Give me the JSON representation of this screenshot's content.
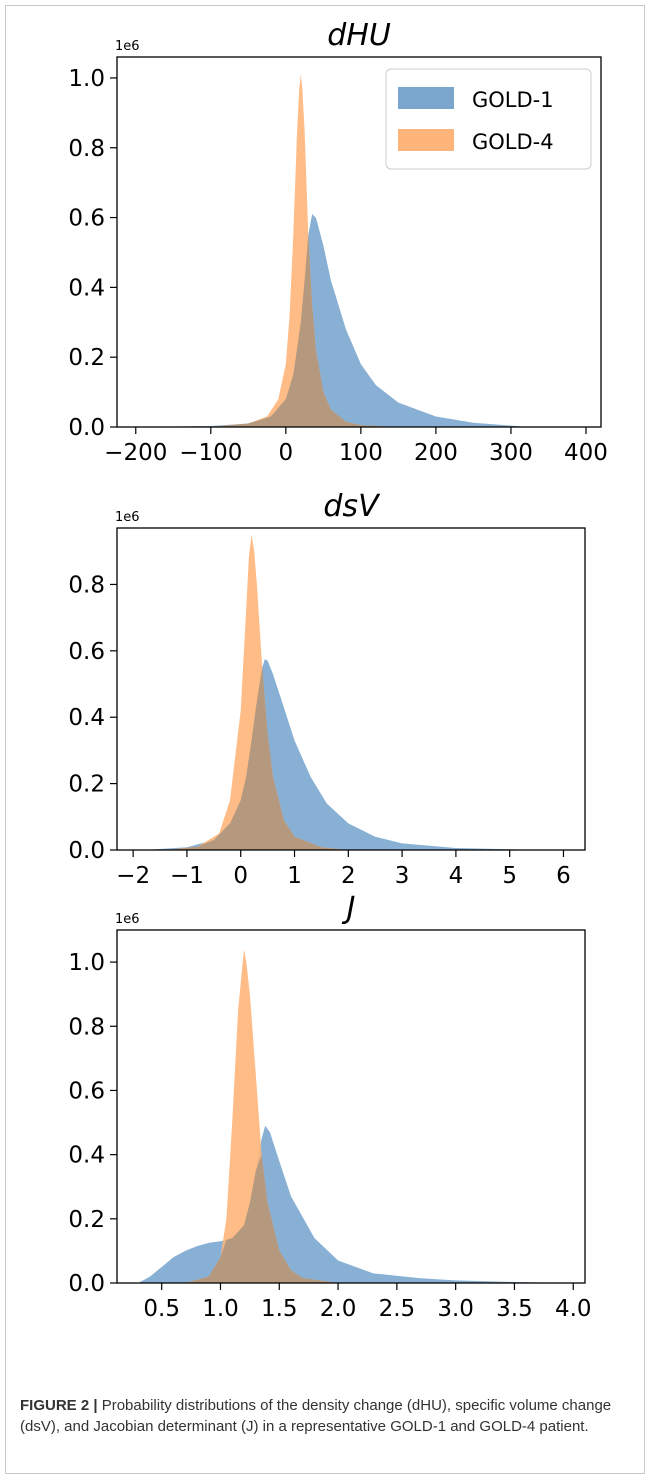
{
  "caption": {
    "label": "FIGURE 2 |",
    "text": "Probability distributions of the density change (dHU), specific volume change (dsV), and Jacobian determinant (J) in a representative GOLD-1 and GOLD-4 patient."
  },
  "colors": {
    "gold1": "#7ba7cf",
    "gold4": "#ffb57a",
    "overlap": "#b5997e"
  },
  "chart_data": [
    {
      "type": "area",
      "title": "dHU",
      "offset_label": "1e6",
      "xlim": [
        -225,
        420
      ],
      "ylim": [
        0,
        1.06
      ],
      "xticks": [
        -200,
        -100,
        0,
        100,
        200,
        300,
        400
      ],
      "xtick_labels": [
        "−200",
        "−100",
        "0",
        "100",
        "200",
        "300",
        "400"
      ],
      "yticks": [
        0.0,
        0.2,
        0.4,
        0.6,
        0.8,
        1.0
      ],
      "ytick_labels": [
        "0.0",
        "0.2",
        "0.4",
        "0.6",
        "0.8",
        "1.0"
      ],
      "legend": {
        "placement": "top-right",
        "entries": [
          "GOLD-1",
          "GOLD-4"
        ]
      },
      "series": [
        {
          "name": "GOLD-1",
          "x": [
            -210,
            -100,
            -50,
            -20,
            0,
            10,
            20,
            25,
            30,
            35,
            40,
            50,
            60,
            80,
            100,
            120,
            150,
            200,
            250,
            300,
            325
          ],
          "y": [
            0.0,
            0.003,
            0.01,
            0.03,
            0.08,
            0.15,
            0.3,
            0.42,
            0.55,
            0.61,
            0.6,
            0.52,
            0.42,
            0.28,
            0.18,
            0.12,
            0.07,
            0.03,
            0.012,
            0.004,
            0.0
          ]
        },
        {
          "name": "GOLD-4",
          "x": [
            -100,
            -50,
            -25,
            -10,
            0,
            5,
            10,
            15,
            18,
            20,
            22,
            25,
            30,
            35,
            40,
            50,
            60,
            80,
            100,
            150
          ],
          "y": [
            0.0,
            0.01,
            0.03,
            0.08,
            0.18,
            0.32,
            0.55,
            0.85,
            0.97,
            1.01,
            0.97,
            0.85,
            0.55,
            0.35,
            0.22,
            0.1,
            0.05,
            0.015,
            0.005,
            0.0
          ]
        }
      ]
    },
    {
      "type": "area",
      "title": "dsV",
      "offset_label": "1e6",
      "xlim": [
        -2.3,
        6.4
      ],
      "ylim": [
        0,
        0.97
      ],
      "xticks": [
        -2,
        -1,
        0,
        1,
        2,
        3,
        4,
        5,
        6
      ],
      "xtick_labels": [
        "−2",
        "−1",
        "0",
        "1",
        "2",
        "3",
        "4",
        "5",
        "6"
      ],
      "yticks": [
        0.0,
        0.2,
        0.4,
        0.6,
        0.8
      ],
      "ytick_labels": [
        "0.0",
        "0.2",
        "0.4",
        "0.6",
        "0.8"
      ],
      "legend": null,
      "series": [
        {
          "name": "GOLD-1",
          "x": [
            -1.8,
            -1.0,
            -0.5,
            -0.2,
            0.0,
            0.1,
            0.2,
            0.3,
            0.4,
            0.45,
            0.5,
            0.6,
            0.8,
            1.0,
            1.3,
            1.6,
            2.0,
            2.5,
            3.0,
            4.0,
            5.0,
            5.5
          ],
          "y": [
            0.0,
            0.008,
            0.03,
            0.08,
            0.15,
            0.22,
            0.33,
            0.45,
            0.55,
            0.575,
            0.57,
            0.53,
            0.43,
            0.33,
            0.22,
            0.14,
            0.08,
            0.04,
            0.02,
            0.006,
            0.002,
            0.0
          ]
        },
        {
          "name": "GOLD-4",
          "x": [
            -1.4,
            -0.8,
            -0.4,
            -0.2,
            0.0,
            0.1,
            0.15,
            0.2,
            0.25,
            0.3,
            0.4,
            0.5,
            0.6,
            0.8,
            1.0,
            1.5,
            2.0
          ],
          "y": [
            0.0,
            0.01,
            0.05,
            0.15,
            0.42,
            0.72,
            0.88,
            0.95,
            0.9,
            0.8,
            0.55,
            0.35,
            0.22,
            0.09,
            0.04,
            0.008,
            0.0
          ]
        }
      ]
    },
    {
      "type": "area",
      "title": "J",
      "offset_label": "1e6",
      "xlim": [
        0.12,
        4.1
      ],
      "ylim": [
        0,
        1.1
      ],
      "xticks": [
        0.5,
        1.0,
        1.5,
        2.0,
        2.5,
        3.0,
        3.5,
        4.0
      ],
      "xtick_labels": [
        "0.5",
        "1.0",
        "1.5",
        "2.0",
        "2.5",
        "3.0",
        "3.5",
        "4.0"
      ],
      "yticks": [
        0.0,
        0.2,
        0.4,
        0.6,
        0.8,
        1.0
      ],
      "ytick_labels": [
        "0.0",
        "0.2",
        "0.4",
        "0.6",
        "0.8",
        "1.0"
      ],
      "legend": null,
      "series": [
        {
          "name": "GOLD-1",
          "x": [
            0.3,
            0.4,
            0.5,
            0.6,
            0.7,
            0.8,
            0.9,
            1.0,
            1.1,
            1.2,
            1.25,
            1.3,
            1.35,
            1.38,
            1.42,
            1.5,
            1.6,
            1.8,
            2.0,
            2.3,
            2.7,
            3.0,
            3.5,
            4.0
          ],
          "y": [
            0.0,
            0.02,
            0.05,
            0.08,
            0.1,
            0.115,
            0.125,
            0.13,
            0.14,
            0.18,
            0.25,
            0.35,
            0.45,
            0.49,
            0.47,
            0.38,
            0.27,
            0.14,
            0.07,
            0.03,
            0.015,
            0.008,
            0.003,
            0.0
          ]
        },
        {
          "name": "GOLD-4",
          "x": [
            0.7,
            0.9,
            1.0,
            1.05,
            1.1,
            1.15,
            1.2,
            1.22,
            1.25,
            1.3,
            1.35,
            1.4,
            1.5,
            1.6,
            1.7,
            2.0
          ],
          "y": [
            0.0,
            0.02,
            0.08,
            0.2,
            0.5,
            0.85,
            1.04,
            1.0,
            0.9,
            0.65,
            0.4,
            0.25,
            0.1,
            0.04,
            0.015,
            0.0
          ]
        }
      ]
    }
  ]
}
